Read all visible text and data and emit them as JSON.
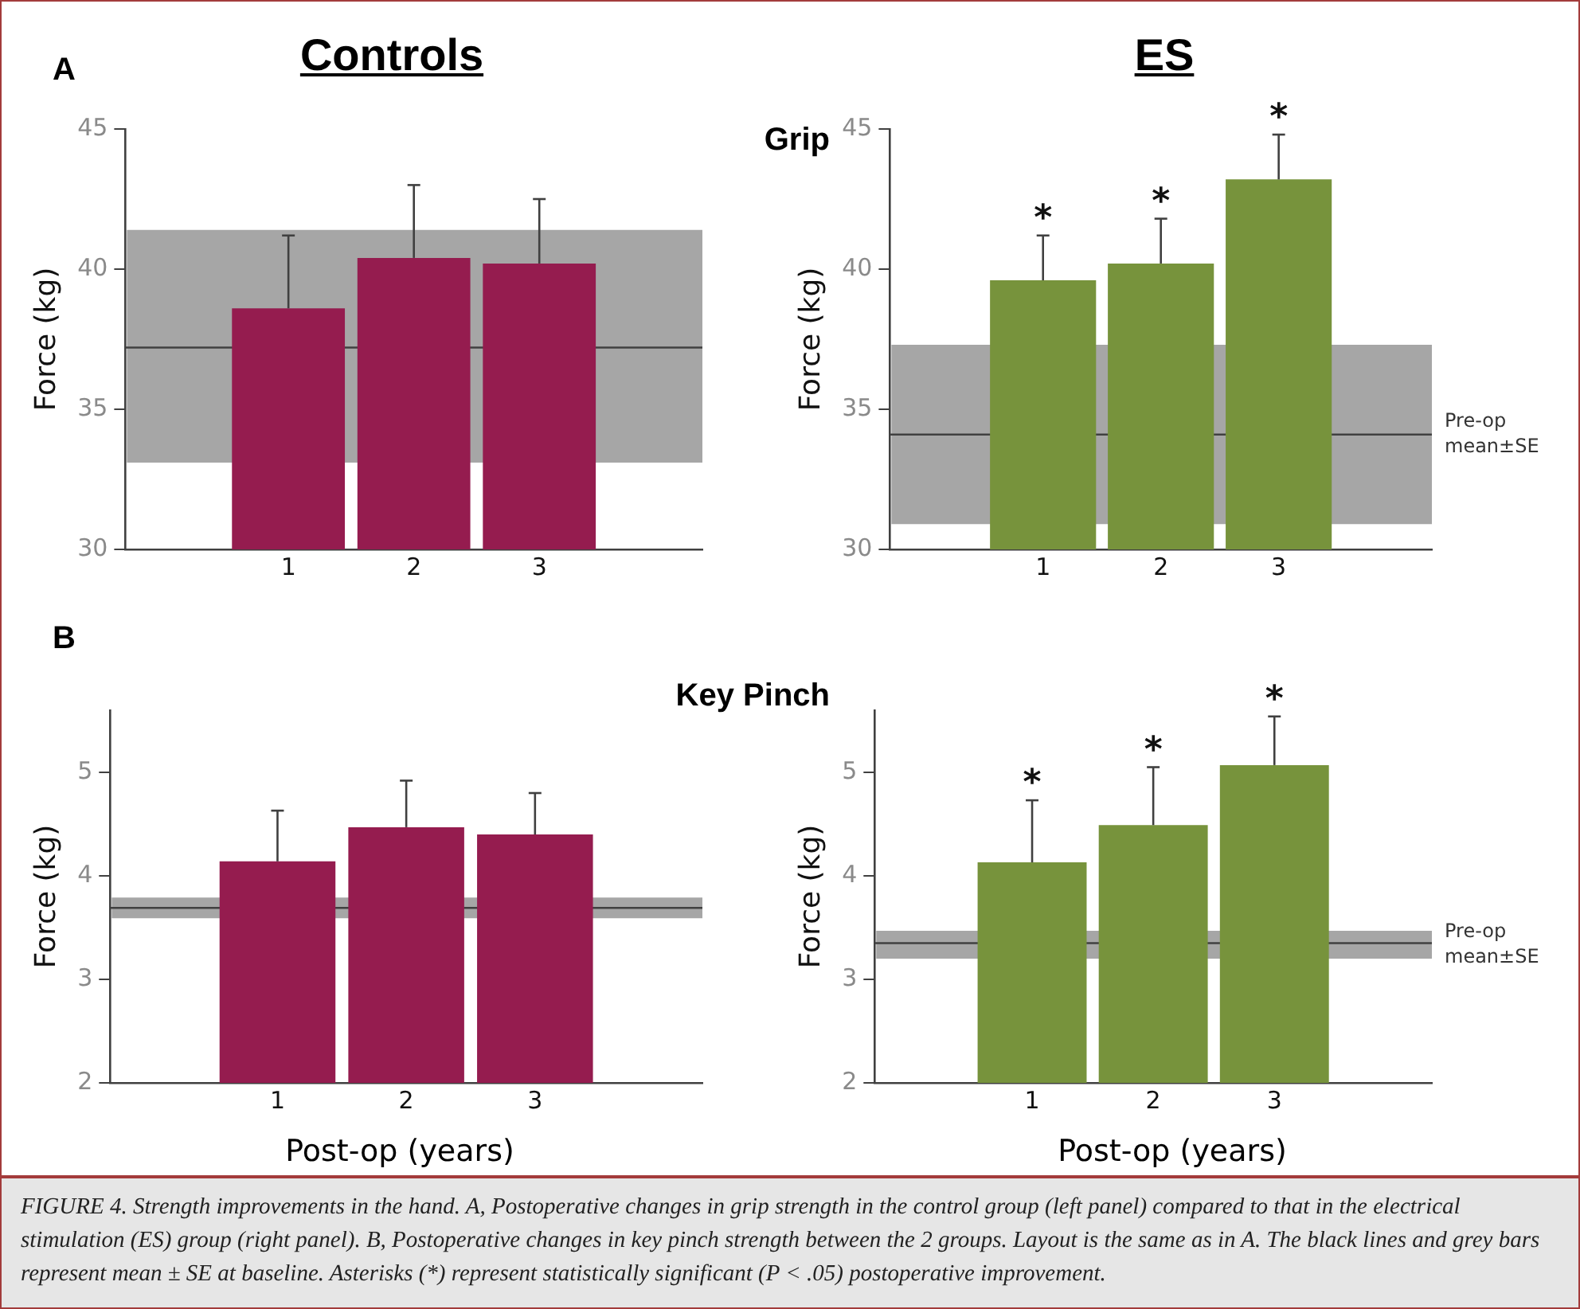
{
  "chart_data": [
    {
      "type": "bar",
      "title": "Controls",
      "ylabel": "Force (kg)",
      "annotations": [
        "A",
        "Grip"
      ],
      "x": [
        1,
        2,
        3
      ],
      "xlim": [
        -0.3,
        4.3
      ],
      "xticks": [
        1,
        2,
        3
      ],
      "values": [
        38.6,
        40.4,
        40.2
      ],
      "errors": [
        [
          38.6,
          41.2
        ],
        [
          40.4,
          43.0
        ],
        [
          40.2,
          42.5
        ]
      ],
      "color": "#951c4f",
      "ylim": [
        30,
        45
      ],
      "yticks": [
        30,
        35,
        40,
        45
      ],
      "grid": false,
      "legend": false,
      "ref_lines": [
        {
          "axis": "y",
          "value": 37.2,
          "color": "#404040"
        }
      ],
      "bands": [
        {
          "axis": "y",
          "from": 33.1,
          "to": 41.4,
          "color": "#a6a6a6"
        }
      ]
    },
    {
      "type": "bar",
      "title": "ES",
      "ylabel": "Force (kg)",
      "annotations": [
        {
          "text": "*",
          "x": 1,
          "y": 41.2
        },
        {
          "text": "*",
          "x": 2,
          "y": 41.8
        },
        {
          "text": "*",
          "x": 3,
          "y": 44.8
        }
      ],
      "x": [
        1,
        2,
        3
      ],
      "xlim": [
        -0.3,
        4.3
      ],
      "xticks": [
        1,
        2,
        3
      ],
      "values": [
        39.6,
        40.2,
        43.2
      ],
      "errors": [
        [
          39.6,
          41.2
        ],
        [
          40.2,
          41.8
        ],
        [
          43.2,
          44.8
        ]
      ],
      "color": "#77933c",
      "ylim": [
        30,
        45
      ],
      "yticks": [
        30,
        35,
        40,
        45
      ],
      "grid": false,
      "legend": false,
      "ref_lines": [
        {
          "axis": "y",
          "value": 34.1,
          "color": "#404040"
        }
      ],
      "bands": [
        {
          "axis": "y",
          "from": 30.9,
          "to": 37.3,
          "color": "#a6a6a6",
          "label": "Pre-op mean±SE"
        }
      ]
    },
    {
      "type": "bar",
      "xlabel": "Post-op (years)",
      "ylabel": "Force (kg)",
      "annotations": [
        "B",
        "Key Pinch"
      ],
      "x": [
        1,
        2,
        3
      ],
      "xlim": [
        -0.3,
        4.3
      ],
      "xticks": [
        1,
        2,
        3
      ],
      "values": [
        4.14,
        4.47,
        4.4
      ],
      "errors": [
        [
          4.14,
          4.63
        ],
        [
          4.47,
          4.92
        ],
        [
          4.4,
          4.8
        ]
      ],
      "color": "#951c4f",
      "ylim": [
        2,
        5.6
      ],
      "yticks": [
        2,
        3,
        4,
        5
      ],
      "grid": false,
      "legend": false,
      "ref_lines": [
        {
          "axis": "y",
          "value": 3.69,
          "color": "#404040"
        }
      ],
      "bands": [
        {
          "axis": "y",
          "from": 3.59,
          "to": 3.79,
          "color": "#a6a6a6"
        }
      ]
    },
    {
      "type": "bar",
      "xlabel": "Post-op (years)",
      "ylabel": "Force (kg)",
      "annotations": [
        {
          "text": "*",
          "x": 1,
          "y": 4.73
        },
        {
          "text": "*",
          "x": 2,
          "y": 5.05
        },
        {
          "text": "*",
          "x": 3,
          "y": 5.54
        },
        "FIGURE 4. Strength improvements in the hand. A, Postoperative changes in grip strength in the control group (left panel) compared to that in the electrical stimulation (ES) group (right panel). B, Postoperative changes in key pinch strength between the 2 groups. Layout is the same as in A. The black lines and grey bars represent mean ± SE at baseline. Asterisks (*) represent statistically significant (P < .05) postoperative improvement."
      ],
      "x": [
        1,
        2,
        3
      ],
      "xlim": [
        -0.3,
        4.3
      ],
      "xticks": [
        1,
        2,
        3
      ],
      "values": [
        4.13,
        4.49,
        5.07
      ],
      "errors": [
        [
          4.13,
          4.73
        ],
        [
          4.49,
          5.05
        ],
        [
          5.07,
          5.54
        ]
      ],
      "color": "#77933c",
      "ylim": [
        2,
        5.6
      ],
      "yticks": [
        2,
        3,
        4,
        5
      ],
      "grid": false,
      "legend": false,
      "ref_lines": [
        {
          "axis": "y",
          "value": 3.35,
          "color": "#404040"
        }
      ],
      "bands": [
        {
          "axis": "y",
          "from": 3.2,
          "to": 3.47,
          "color": "#a6a6a6",
          "label": "Pre-op mean±SE"
        }
      ]
    }
  ]
}
